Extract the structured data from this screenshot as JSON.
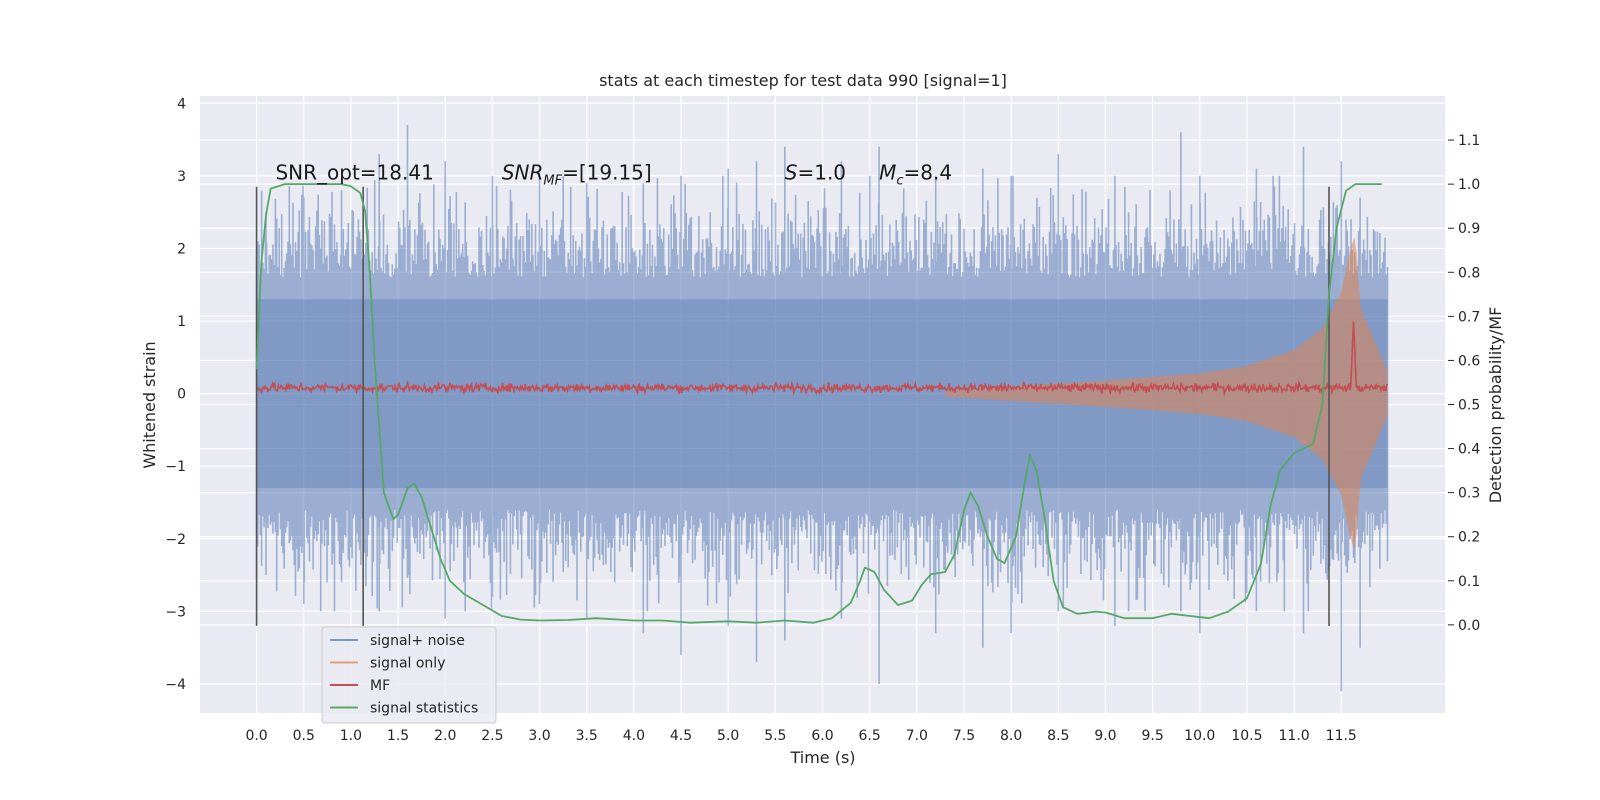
{
  "chart_data": {
    "type": "line",
    "title": "stats at each timestep for test data 990 [signal=1]",
    "xlabel": "Time (s)",
    "ylabel_left": "Whitened strain",
    "ylabel_right": "Detection probability/MF",
    "xlim": [
      -0.6,
      12.6
    ],
    "ylim_left": [
      -4.4,
      4.1
    ],
    "ylim_right": [
      -0.2,
      1.2
    ],
    "x_ticks": [
      "0.0",
      "0.5",
      "1.0",
      "1.5",
      "2.0",
      "2.5",
      "3.0",
      "3.5",
      "4.0",
      "4.5",
      "5.0",
      "5.5",
      "6.0",
      "6.5",
      "7.0",
      "7.5",
      "8.0",
      "8.5",
      "9.0",
      "9.5",
      "10.0",
      "10.5",
      "11.0",
      "11.5"
    ],
    "y_ticks_left": [
      "4",
      "3",
      "2",
      "1",
      "0",
      "−1",
      "−2",
      "−3",
      "−4"
    ],
    "y_ticks_right": [
      "1.1",
      "1.0",
      "0.9",
      "0.8",
      "0.7",
      "0.6",
      "0.5",
      "0.4",
      "0.3",
      "0.2",
      "0.1",
      "0.0"
    ],
    "grid": true,
    "legend_position": "lower-left",
    "annotations": [
      {
        "text": "SNR_opt=18.41",
        "x": 0.2,
        "y": 2.95
      },
      {
        "base": "SNR",
        "sub": "MF",
        "text": "=[19.15]",
        "x": 2.6,
        "y": 2.95
      },
      {
        "base": "S",
        "text": "=1.0",
        "x": 5.6,
        "y": 2.95
      },
      {
        "base": "M",
        "sub": "c",
        "text": "=8.4",
        "x": 6.6,
        "y": 2.95
      }
    ],
    "vertical_lines": [
      {
        "x": 0.0,
        "ymin": -3.2,
        "ymax": 2.85
      },
      {
        "x": 1.13,
        "ymin": -3.2,
        "ymax": 2.85
      },
      {
        "x": 11.37,
        "ymin": -3.2,
        "ymax": 2.85
      }
    ],
    "series": [
      {
        "name": "signal+ noise",
        "kind": "noise_band",
        "color": "#4c72b0",
        "opacity": 0.5,
        "x_range": [
          0.0,
          11.99
        ],
        "envelope_upper": 1.6,
        "envelope_lower": -1.6,
        "spikes": [
          [
            0.1,
            2.5,
            -2.5
          ],
          [
            0.5,
            2.7,
            -2.9
          ],
          [
            0.9,
            2.8,
            -2.6
          ],
          [
            1.3,
            3.3,
            -3.0
          ],
          [
            1.6,
            3.7,
            -2.3
          ],
          [
            2.0,
            3.2,
            -3.1
          ],
          [
            2.5,
            3.0,
            -2.8
          ],
          [
            3.0,
            3.1,
            -2.9
          ],
          [
            3.5,
            2.9,
            -3.1
          ],
          [
            4.1,
            2.9,
            -3.3
          ],
          [
            4.5,
            3.0,
            -3.6
          ],
          [
            5.0,
            3.1,
            -3.2
          ],
          [
            5.3,
            3.2,
            -3.7
          ],
          [
            5.6,
            3.4,
            -3.4
          ],
          [
            6.2,
            3.2,
            -3.1
          ],
          [
            6.6,
            3.4,
            -4.0
          ],
          [
            7.2,
            3.0,
            -3.3
          ],
          [
            7.7,
            3.1,
            -3.5
          ],
          [
            8.0,
            3.0,
            -3.3
          ],
          [
            8.5,
            3.3,
            -3.0
          ],
          [
            9.1,
            3.0,
            -3.2
          ],
          [
            9.8,
            3.6,
            -3.0
          ],
          [
            10.0,
            3.0,
            -3.3
          ],
          [
            10.6,
            3.1,
            -3.0
          ],
          [
            11.1,
            3.4,
            -3.3
          ],
          [
            11.5,
            3.2,
            -4.1
          ],
          [
            11.7,
            2.7,
            -3.5
          ]
        ]
      },
      {
        "name": "signal only",
        "kind": "chirp_envelope",
        "color": "#dd8452",
        "opacity": 0.55,
        "amplitude_points": [
          [
            7.3,
            0.04
          ],
          [
            8.0,
            0.1
          ],
          [
            9.0,
            0.18
          ],
          [
            10.0,
            0.28
          ],
          [
            10.5,
            0.38
          ],
          [
            11.0,
            0.6
          ],
          [
            11.3,
            0.9
          ],
          [
            11.5,
            1.4
          ],
          [
            11.6,
            2.0
          ],
          [
            11.65,
            2.2
          ],
          [
            11.7,
            1.2
          ],
          [
            11.99,
            0.3
          ]
        ]
      },
      {
        "name": "MF",
        "kind": "fluctuating_line",
        "color": "#c44e52",
        "x_range": [
          0.0,
          11.99
        ],
        "baseline": 0.08,
        "noise_amplitude": 0.05,
        "spike": {
          "x": 11.63,
          "y": 1.0
        }
      },
      {
        "name": "signal statistics",
        "kind": "line",
        "axis": "right",
        "color": "#55a868",
        "points": [
          [
            0.0,
            0.58
          ],
          [
            0.05,
            0.82
          ],
          [
            0.1,
            0.93
          ],
          [
            0.15,
            0.99
          ],
          [
            0.3,
            1.0
          ],
          [
            0.6,
            1.0
          ],
          [
            0.9,
            1.0
          ],
          [
            1.0,
            0.995
          ],
          [
            1.1,
            0.98
          ],
          [
            1.15,
            0.94
          ],
          [
            1.2,
            0.8
          ],
          [
            1.25,
            0.6
          ],
          [
            1.3,
            0.45
          ],
          [
            1.35,
            0.3
          ],
          [
            1.4,
            0.27
          ],
          [
            1.45,
            0.24
          ],
          [
            1.5,
            0.25
          ],
          [
            1.55,
            0.28
          ],
          [
            1.6,
            0.31
          ],
          [
            1.67,
            0.32
          ],
          [
            1.75,
            0.29
          ],
          [
            1.85,
            0.22
          ],
          [
            1.95,
            0.15
          ],
          [
            2.05,
            0.1
          ],
          [
            2.2,
            0.07
          ],
          [
            2.4,
            0.045
          ],
          [
            2.6,
            0.02
          ],
          [
            2.8,
            0.012
          ],
          [
            3.0,
            0.01
          ],
          [
            3.3,
            0.011
          ],
          [
            3.6,
            0.015
          ],
          [
            4.0,
            0.01
          ],
          [
            4.3,
            0.01
          ],
          [
            4.6,
            0.005
          ],
          [
            5.0,
            0.008
          ],
          [
            5.3,
            0.005
          ],
          [
            5.6,
            0.01
          ],
          [
            5.9,
            0.005
          ],
          [
            6.1,
            0.015
          ],
          [
            6.3,
            0.05
          ],
          [
            6.4,
            0.1
          ],
          [
            6.45,
            0.13
          ],
          [
            6.55,
            0.12
          ],
          [
            6.65,
            0.08
          ],
          [
            6.8,
            0.045
          ],
          [
            6.95,
            0.055
          ],
          [
            7.05,
            0.09
          ],
          [
            7.15,
            0.115
          ],
          [
            7.3,
            0.12
          ],
          [
            7.4,
            0.16
          ],
          [
            7.5,
            0.26
          ],
          [
            7.57,
            0.3
          ],
          [
            7.65,
            0.27
          ],
          [
            7.75,
            0.2
          ],
          [
            7.85,
            0.15
          ],
          [
            7.93,
            0.14
          ],
          [
            8.05,
            0.2
          ],
          [
            8.15,
            0.33
          ],
          [
            8.2,
            0.385
          ],
          [
            8.27,
            0.35
          ],
          [
            8.35,
            0.25
          ],
          [
            8.45,
            0.1
          ],
          [
            8.55,
            0.04
          ],
          [
            8.7,
            0.025
          ],
          [
            8.9,
            0.03
          ],
          [
            9.0,
            0.028
          ],
          [
            9.2,
            0.015
          ],
          [
            9.5,
            0.015
          ],
          [
            9.7,
            0.025
          ],
          [
            9.9,
            0.02
          ],
          [
            10.1,
            0.015
          ],
          [
            10.3,
            0.03
          ],
          [
            10.5,
            0.06
          ],
          [
            10.65,
            0.14
          ],
          [
            10.75,
            0.27
          ],
          [
            10.85,
            0.35
          ],
          [
            11.0,
            0.39
          ],
          [
            11.2,
            0.41
          ],
          [
            11.3,
            0.5
          ],
          [
            11.37,
            0.75
          ],
          [
            11.45,
            0.9
          ],
          [
            11.55,
            0.985
          ],
          [
            11.65,
            1.0
          ],
          [
            11.93,
            1.0
          ]
        ]
      }
    ]
  }
}
